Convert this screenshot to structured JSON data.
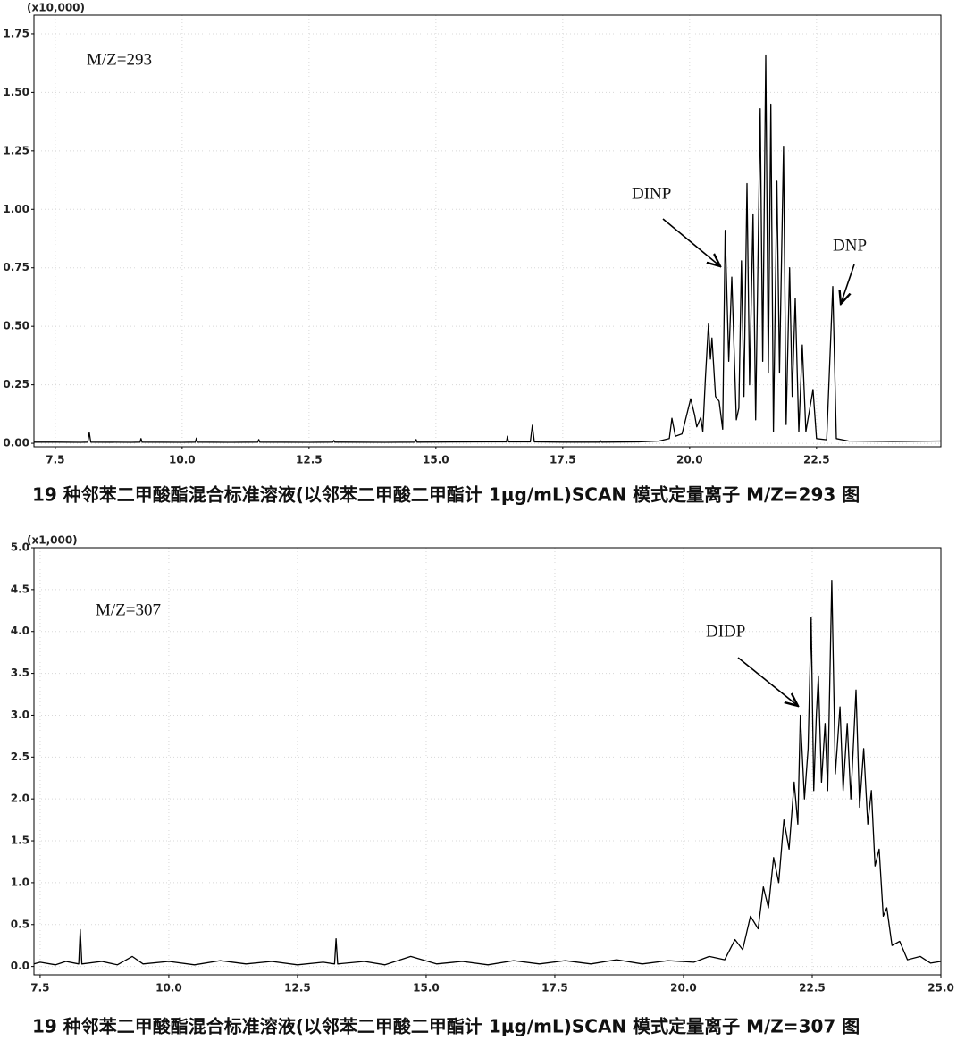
{
  "chart_data": [
    {
      "type": "line",
      "title": "19 种邻苯二甲酸酯混合标准溶液(以邻苯二甲酸二甲酯计 1μg/mL)SCAN 模式定量离子 M/Z=293 图",
      "y_scale_label": "(x10,000)",
      "color": "#000000",
      "grid": true,
      "annotations": [
        {
          "text": "M/Z=293"
        },
        {
          "text": "DINP"
        },
        {
          "text": "DNP"
        }
      ],
      "xlim": [
        7.08,
        24.95
      ],
      "ylim": [
        -0.015,
        1.83
      ],
      "xticks": [
        7.5,
        {
          "value": 10,
          "label": "10.0"
        },
        12.5,
        {
          "value": 15,
          "label": "15.0"
        },
        17.5,
        {
          "value": 20,
          "label": "20.0"
        },
        22.5
      ],
      "yticks": [
        {
          "value": 0,
          "label": "0.00"
        },
        0.25,
        {
          "value": 0.5,
          "label": "0.50"
        },
        0.75,
        {
          "value": 1,
          "label": "1.00"
        },
        1.25,
        {
          "value": 1.5,
          "label": "1.50"
        },
        1.75
      ],
      "x": [
        7.08,
        7.5,
        8.0,
        8.14,
        8.17,
        8.2,
        9.0,
        9.17,
        9.19,
        9.21,
        10.0,
        10.26,
        10.28,
        10.3,
        11.0,
        11.49,
        11.51,
        11.53,
        12.5,
        12.97,
        12.99,
        13.01,
        14.0,
        14.59,
        14.61,
        14.63,
        16.0,
        16.39,
        16.41,
        16.43,
        16.86,
        16.9,
        16.94,
        17.5,
        18.22,
        18.24,
        18.26,
        19.0,
        19.4,
        19.6,
        19.65,
        19.72,
        19.85,
        20.02,
        20.1,
        20.14,
        20.22,
        20.26,
        20.31,
        20.37,
        20.41,
        20.44,
        20.51,
        20.58,
        20.65,
        20.7,
        20.77,
        20.83,
        20.92,
        20.97,
        21.02,
        21.07,
        21.13,
        21.18,
        21.25,
        21.3,
        21.39,
        21.44,
        21.5,
        21.55,
        21.6,
        21.65,
        21.72,
        21.77,
        21.85,
        21.9,
        21.97,
        22.02,
        22.08,
        22.15,
        22.22,
        22.29,
        22.43,
        22.5,
        22.7,
        22.82,
        22.89,
        23.13,
        24.0,
        24.95
      ],
      "values": [
        0.005,
        0.005,
        0.004,
        0.005,
        0.046,
        0.005,
        0.004,
        0.005,
        0.02,
        0.005,
        0.004,
        0.005,
        0.022,
        0.005,
        0.004,
        0.005,
        0.016,
        0.005,
        0.004,
        0.005,
        0.012,
        0.005,
        0.004,
        0.005,
        0.016,
        0.005,
        0.006,
        0.006,
        0.03,
        0.006,
        0.006,
        0.077,
        0.006,
        0.005,
        0.005,
        0.012,
        0.005,
        0.006,
        0.01,
        0.02,
        0.107,
        0.03,
        0.04,
        0.19,
        0.12,
        0.07,
        0.11,
        0.05,
        0.28,
        0.51,
        0.36,
        0.45,
        0.2,
        0.18,
        0.06,
        0.91,
        0.35,
        0.71,
        0.1,
        0.15,
        0.78,
        0.2,
        1.11,
        0.25,
        0.98,
        0.1,
        1.43,
        0.35,
        1.66,
        0.3,
        1.45,
        0.05,
        1.12,
        0.3,
        1.27,
        0.08,
        0.75,
        0.2,
        0.62,
        0.05,
        0.42,
        0.05,
        0.23,
        0.02,
        0.015,
        0.67,
        0.02,
        0.01,
        0.008,
        0.01
      ]
    },
    {
      "type": "line",
      "title": "19 种邻苯二甲酸酯混合标准溶液(以邻苯二甲酸二甲酯计 1μg/mL)SCAN 模式定量离子 M/Z=307 图",
      "y_scale_label": "(x1,000)",
      "color": "#000000",
      "grid": true,
      "annotations": [
        {
          "text": "M/Z=307"
        },
        {
          "text": "DIDP"
        }
      ],
      "xlim": [
        7.38,
        25.0
      ],
      "ylim": [
        -0.1,
        5.0
      ],
      "xticks": [
        7.5,
        {
          "value": 10,
          "label": "10.0"
        },
        12.5,
        {
          "value": 15,
          "label": "15.0"
        },
        17.5,
        {
          "value": 20,
          "label": "20.0"
        },
        22.5,
        {
          "value": 25,
          "label": "25.0"
        }
      ],
      "yticks": [
        {
          "value": 0,
          "label": "0.0"
        },
        0.5,
        {
          "value": 1,
          "label": "1.0"
        },
        1.5,
        {
          "value": 2,
          "label": "2.0"
        },
        2.5,
        {
          "value": 3,
          "label": "3.0"
        },
        3.5,
        {
          "value": 4,
          "label": "4.0"
        },
        4.5,
        {
          "value": 5,
          "label": "5.0"
        }
      ],
      "x": [
        7.38,
        7.5,
        7.8,
        8.0,
        8.25,
        8.28,
        8.31,
        8.7,
        9.0,
        9.29,
        9.5,
        10.0,
        10.5,
        11.0,
        11.5,
        12.0,
        12.5,
        13.0,
        13.22,
        13.25,
        13.28,
        13.8,
        14.2,
        14.7,
        15.2,
        15.7,
        16.2,
        16.7,
        17.2,
        17.7,
        18.2,
        18.7,
        19.2,
        19.7,
        20.2,
        20.5,
        20.8,
        21.0,
        21.15,
        21.3,
        21.45,
        21.55,
        21.65,
        21.75,
        21.85,
        21.95,
        22.05,
        22.15,
        22.22,
        22.27,
        22.35,
        22.42,
        22.48,
        22.53,
        22.58,
        22.62,
        22.68,
        22.75,
        22.8,
        22.88,
        22.95,
        23.04,
        23.1,
        23.18,
        23.25,
        23.35,
        23.42,
        23.5,
        23.58,
        23.65,
        23.72,
        23.8,
        23.88,
        23.95,
        24.05,
        24.2,
        24.35,
        24.6,
        24.8,
        25.0
      ],
      "values": [
        0.03,
        0.05,
        0.02,
        0.06,
        0.03,
        0.44,
        0.03,
        0.06,
        0.02,
        0.12,
        0.03,
        0.06,
        0.02,
        0.07,
        0.03,
        0.06,
        0.02,
        0.05,
        0.03,
        0.33,
        0.03,
        0.06,
        0.02,
        0.12,
        0.03,
        0.06,
        0.02,
        0.07,
        0.03,
        0.07,
        0.03,
        0.08,
        0.03,
        0.07,
        0.05,
        0.12,
        0.08,
        0.32,
        0.2,
        0.6,
        0.45,
        0.95,
        0.7,
        1.3,
        1.0,
        1.75,
        1.4,
        2.2,
        1.7,
        3.0,
        2.0,
        2.6,
        4.17,
        2.1,
        3.0,
        3.47,
        2.2,
        2.9,
        2.1,
        4.61,
        2.3,
        3.1,
        2.1,
        2.9,
        2.0,
        3.3,
        1.9,
        2.6,
        1.7,
        2.1,
        1.2,
        1.4,
        0.6,
        0.7,
        0.25,
        0.3,
        0.08,
        0.12,
        0.04,
        0.06
      ]
    }
  ]
}
